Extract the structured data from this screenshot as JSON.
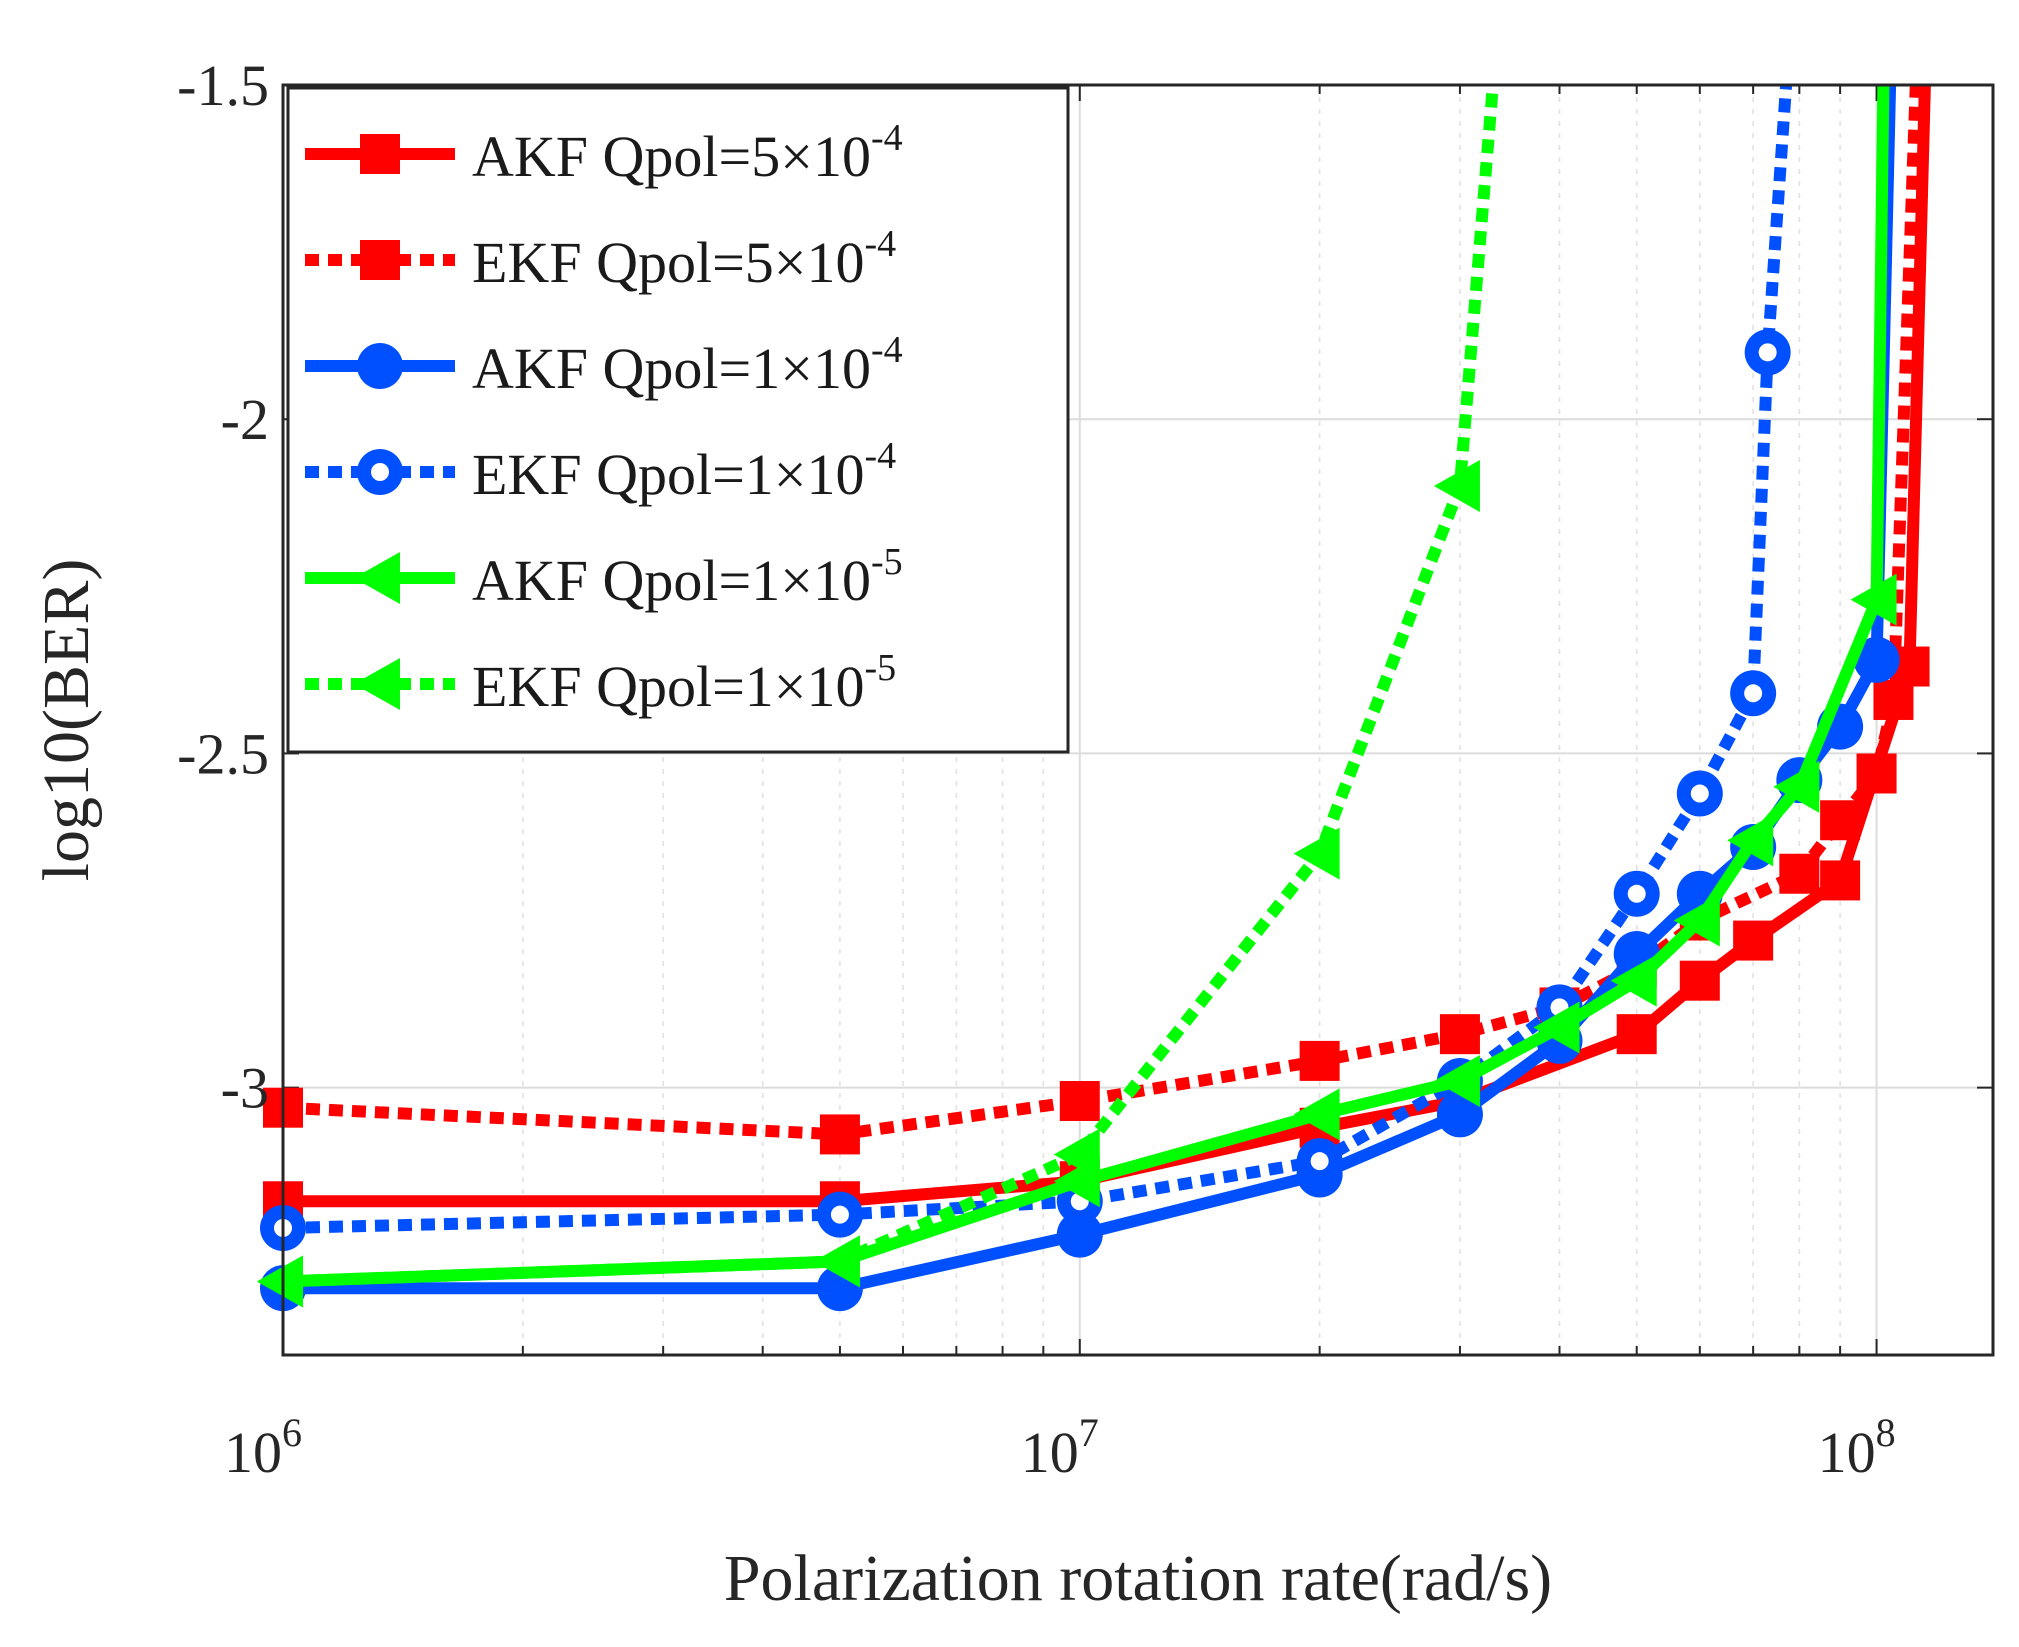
{
  "chart_data": {
    "type": "line",
    "title": "",
    "xlabel": "Polarization rotation rate(rad/s)",
    "ylabel": "log10(BER)",
    "xscale": "log",
    "xlim": [
      1000000,
      140000000
    ],
    "ylim": [
      -3.4,
      -1.5
    ],
    "grid": true,
    "legend_position": "top-left",
    "xticks": [
      {
        "value": 1000000,
        "base": "10",
        "exp": "6"
      },
      {
        "value": 10000000,
        "base": "10",
        "exp": "7"
      },
      {
        "value": 100000000,
        "base": "10",
        "exp": "8"
      }
    ],
    "yticks": [
      {
        "value": -1.5,
        "label": "-1.5"
      },
      {
        "value": -2,
        "label": "-2"
      },
      {
        "value": -2.5,
        "label": "-2.5"
      },
      {
        "value": -3,
        "label": "-3"
      }
    ],
    "series": [
      {
        "name": "AKF Qpol=5×10",
        "exp": "-4",
        "color": "#ff0000",
        "style": "solid",
        "marker": "square",
        "x": [
          1000000,
          5000000,
          10000000,
          20000000,
          30000000,
          50000000,
          60000000,
          70000000,
          90000000,
          110000000,
          115000000
        ],
        "y": [
          -3.17,
          -3.17,
          -3.14,
          -3.06,
          -3.02,
          -2.92,
          -2.84,
          -2.78,
          -2.69,
          -2.37,
          -1.5
        ]
      },
      {
        "name": "EKF Qpol=5×10",
        "exp": "-4",
        "color": "#ff0000",
        "style": "dotted",
        "marker": "square",
        "x": [
          1000000,
          5000000,
          10000000,
          20000000,
          30000000,
          40000000,
          50000000,
          60000000,
          80000000,
          90000000,
          100000000,
          105000000,
          112000000
        ],
        "y": [
          -3.03,
          -3.07,
          -3.02,
          -2.96,
          -2.92,
          -2.88,
          -2.82,
          -2.75,
          -2.68,
          -2.6,
          -2.53,
          -2.42,
          -1.5
        ]
      },
      {
        "name": "AKF Qpol=1×10",
        "exp": "-4",
        "color": "#0050ff",
        "style": "solid",
        "marker": "circle",
        "x": [
          1000000,
          5000000,
          10000000,
          20000000,
          30000000,
          40000000,
          50000000,
          60000000,
          70000000,
          80000000,
          90000000,
          100000000,
          104000000
        ],
        "y": [
          -3.3,
          -3.3,
          -3.22,
          -3.13,
          -3.04,
          -2.93,
          -2.8,
          -2.71,
          -2.64,
          -2.54,
          -2.46,
          -2.36,
          -1.5
        ]
      },
      {
        "name": "EKF Qpol=1×10",
        "exp": "-4",
        "color": "#0050ff",
        "style": "dotted",
        "marker": "circle",
        "x": [
          1000000,
          5000000,
          10000000,
          20000000,
          30000000,
          40000000,
          50000000,
          60000000,
          70000000,
          73000000,
          77000000
        ],
        "y": [
          -3.21,
          -3.19,
          -3.17,
          -3.11,
          -2.99,
          -2.88,
          -2.71,
          -2.56,
          -2.41,
          -1.9,
          -1.5
        ]
      },
      {
        "name": "AKF Qpol=1×10",
        "exp": "-5",
        "color": "#00ff00",
        "style": "solid",
        "marker": "triangle-left",
        "x": [
          1000000,
          5000000,
          10000000,
          20000000,
          30000000,
          40000000,
          50000000,
          60000000,
          70000000,
          80000000,
          100000000,
          102000000
        ],
        "y": [
          -3.29,
          -3.26,
          -3.14,
          -3.04,
          -2.99,
          -2.91,
          -2.84,
          -2.75,
          -2.63,
          -2.55,
          -2.27,
          -1.5
        ]
      },
      {
        "name": "EKF Qpol=1×10",
        "exp": "-5",
        "color": "#00ff00",
        "style": "dotted",
        "marker": "triangle-left",
        "x": [
          1000000,
          5000000,
          10000000,
          20000000,
          30000000,
          33000000
        ],
        "y": [
          -3.29,
          -3.26,
          -3.1,
          -2.65,
          -2.1,
          -1.5
        ]
      }
    ]
  }
}
